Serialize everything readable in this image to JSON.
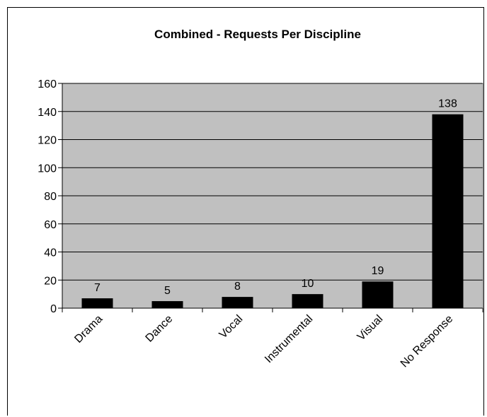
{
  "chart_data": {
    "type": "bar",
    "title": "Combined - Requests Per Discipline",
    "xlabel": "",
    "ylabel": "",
    "categories": [
      "Drama",
      "Dance",
      "Vocal",
      "Instrumental",
      "Visual",
      "No Response"
    ],
    "values": [
      7,
      5,
      8,
      10,
      19,
      138
    ],
    "data_labels": [
      "7",
      "5",
      "8",
      "10",
      "19",
      "138"
    ],
    "ylim": [
      0,
      160
    ],
    "yticks": [
      0,
      20,
      40,
      60,
      80,
      100,
      120,
      140,
      160
    ],
    "grid": true,
    "legend": "none",
    "colors": {
      "plot_background": "#c0c0c0",
      "bar": "#000000",
      "gridline": "#000000"
    }
  }
}
